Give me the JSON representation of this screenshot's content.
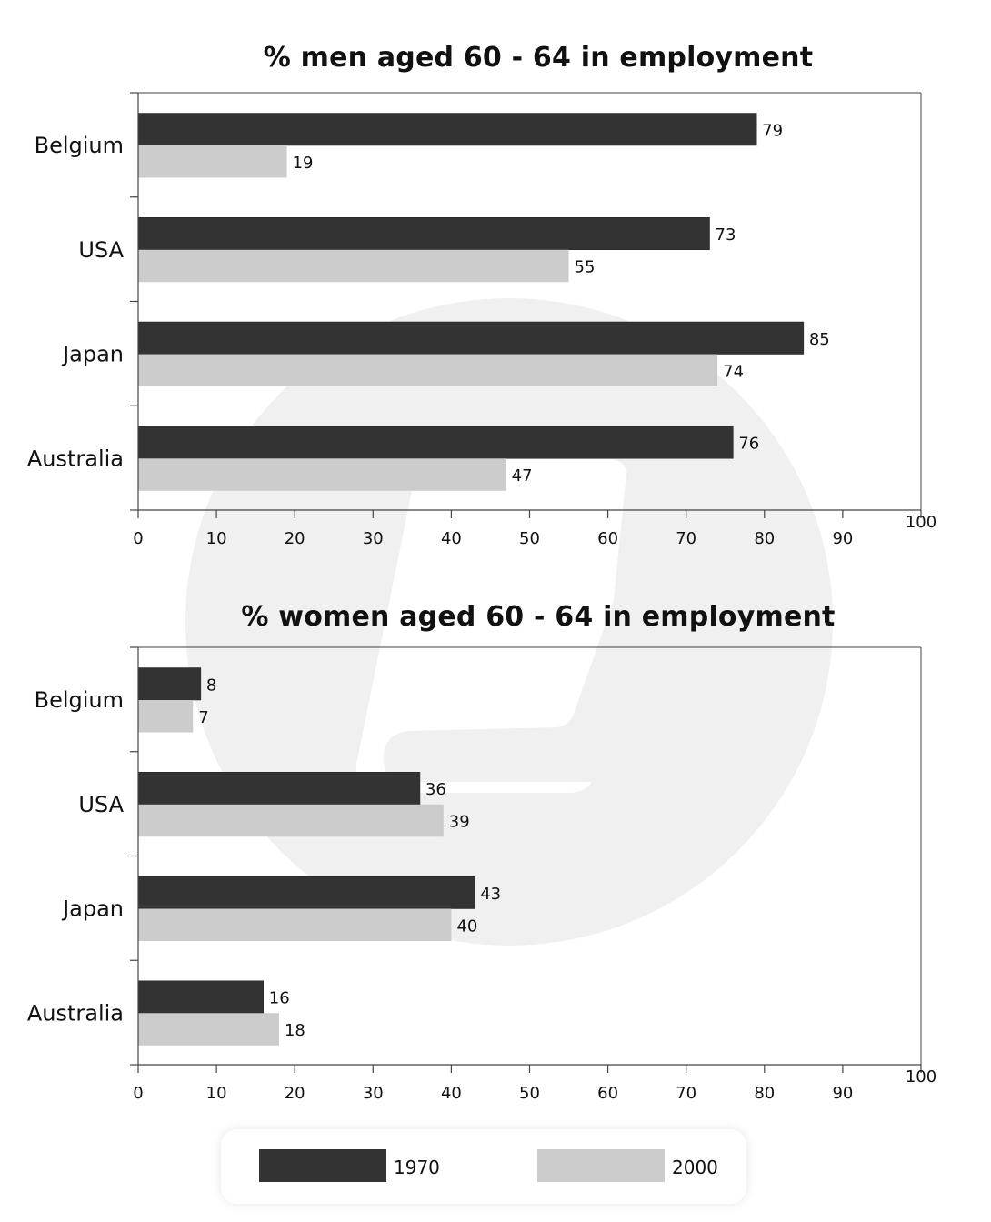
{
  "colors": {
    "series_1970": "#333333",
    "series_2000": "#cccccc",
    "axis": "#444444",
    "watermark": "#f0f0f0"
  },
  "legend": {
    "items": [
      {
        "label": "1970",
        "color": "#333333"
      },
      {
        "label": "2000",
        "color": "#cccccc"
      }
    ]
  },
  "chart_data": [
    {
      "type": "bar",
      "orientation": "horizontal",
      "title": "% men aged 60 - 64 in employment",
      "categories": [
        "Belgium",
        "USA",
        "Japan",
        "Australia"
      ],
      "series": [
        {
          "name": "1970",
          "values": [
            79,
            73,
            85,
            76
          ]
        },
        {
          "name": "2000",
          "values": [
            19,
            55,
            74,
            47
          ]
        }
      ],
      "xlim": [
        0,
        100
      ],
      "xticks": [
        0,
        10,
        20,
        30,
        40,
        50,
        60,
        70,
        80,
        90,
        100
      ],
      "grid": false,
      "legend": "bottom"
    },
    {
      "type": "bar",
      "orientation": "horizontal",
      "title": "% women aged 60 - 64 in employment",
      "categories": [
        "Belgium",
        "USA",
        "Japan",
        "Australia"
      ],
      "series": [
        {
          "name": "1970",
          "values": [
            8,
            36,
            43,
            16
          ]
        },
        {
          "name": "2000",
          "values": [
            7,
            39,
            40,
            18
          ]
        }
      ],
      "xlim": [
        0,
        100
      ],
      "xticks": [
        0,
        10,
        20,
        30,
        40,
        50,
        60,
        70,
        80,
        90,
        100
      ],
      "grid": false,
      "legend": "bottom"
    }
  ]
}
